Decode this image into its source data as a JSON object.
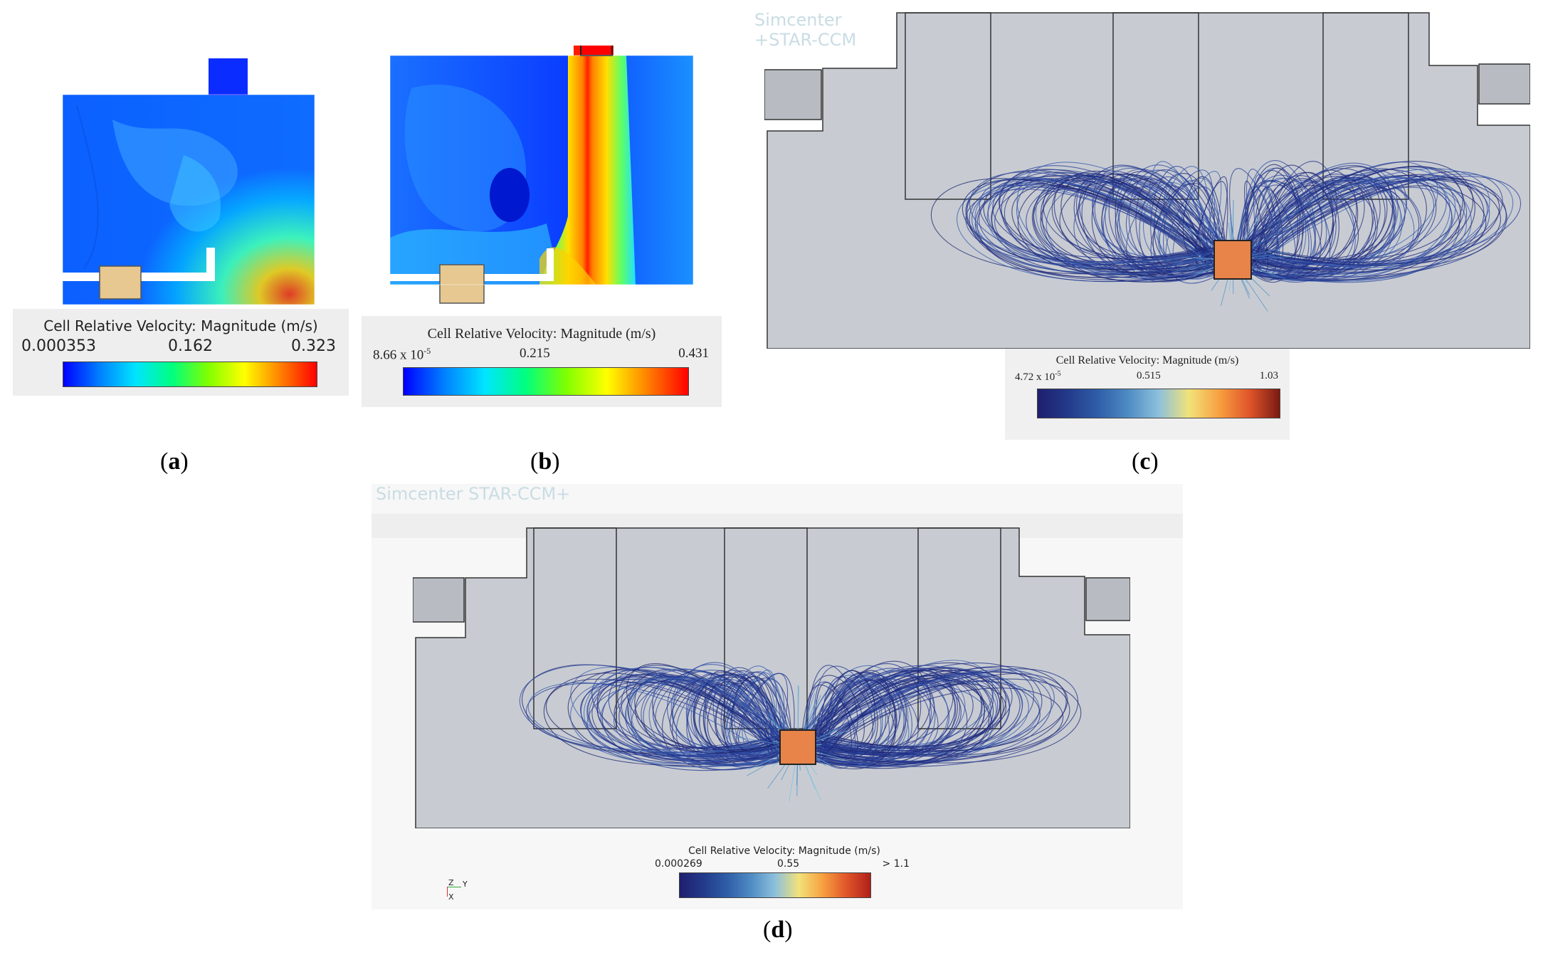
{
  "panels": [
    {
      "id": "a",
      "caption_letter": "a",
      "legend": {
        "title": "Cell Relative Velocity: Magnitude (m/s)",
        "min": "0.000353",
        "mid": "0.162",
        "max": "0.323"
      },
      "colormap": [
        "#0000ff",
        "#0080ff",
        "#00e5ff",
        "#00ff80",
        "#80ff00",
        "#ffff00",
        "#ff8000",
        "#ff0000"
      ]
    },
    {
      "id": "b",
      "caption_letter": "b",
      "legend": {
        "title": "Cell Relative Velocity:  Magnitude  (m/s)",
        "min": "8.66 x 10",
        "min_exp": "-5",
        "mid": "0.215",
        "max": "0.431"
      },
      "colormap": [
        "#0000ff",
        "#0080ff",
        "#00e5ff",
        "#00ff80",
        "#80ff00",
        "#ffff00",
        "#ff8000",
        "#ff0000"
      ]
    },
    {
      "id": "c",
      "caption_letter": "c",
      "watermark": "Simcenter STAR-CCM+",
      "legend": {
        "title": "Cell Relative Velocity: Magnitude (m/s)",
        "min": "4.72 x 10",
        "min_exp": "-5",
        "mid": "0.515",
        "max": "1.03"
      },
      "colormap": [
        "#1f1f6e",
        "#233a8a",
        "#2f5ea8",
        "#4f8cc4",
        "#8cc0dc",
        "#f2e27a",
        "#f7a040",
        "#e0552a",
        "#7a1a12"
      ]
    },
    {
      "id": "d",
      "caption_letter": "d",
      "watermark": "Simcenter STAR-CCM+",
      "axes_triad": {
        "z": "Z",
        "y": "Y",
        "x": "X"
      },
      "legend": {
        "title": "Cell Relative Velocity: Magnitude (m/s)",
        "min": "0.000269",
        "mid": "0.55",
        "max": "> 1.1"
      },
      "colormap": [
        "#1f1f6e",
        "#233a8a",
        "#2f5ea8",
        "#4f8cc4",
        "#8cc0dc",
        "#f2e27a",
        "#f7a040",
        "#e0552a",
        "#b0201a"
      ]
    }
  ]
}
